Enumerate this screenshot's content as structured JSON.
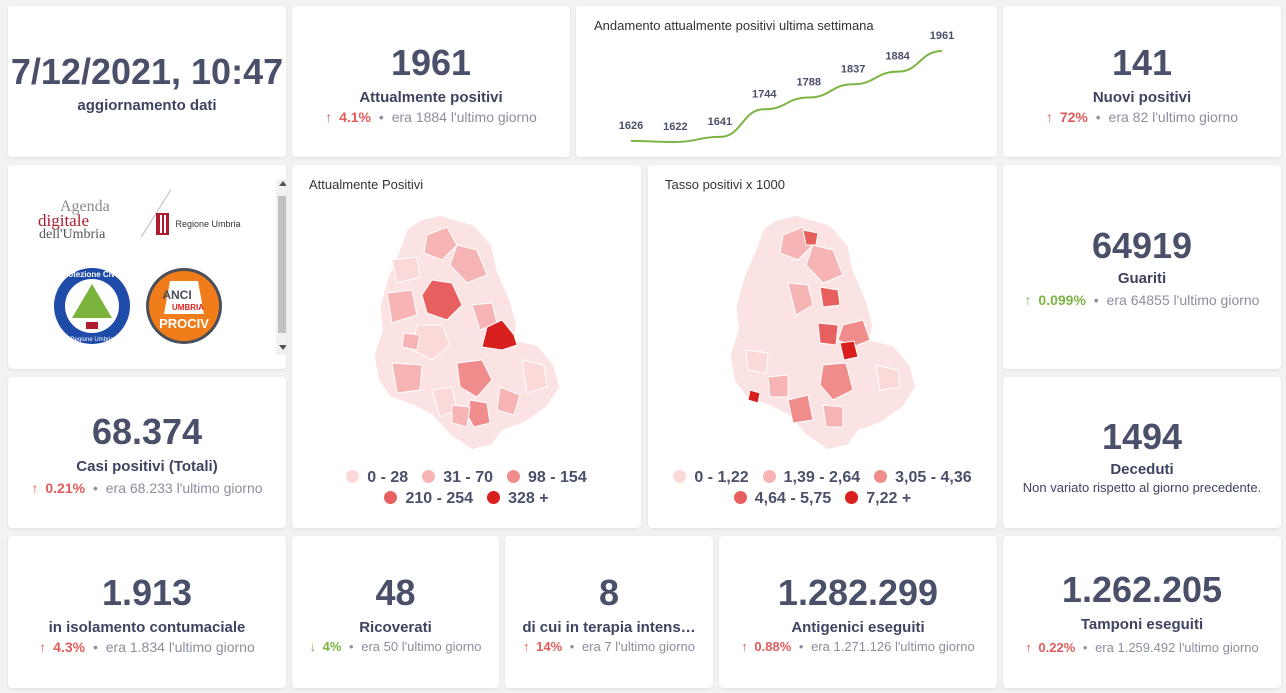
{
  "update": {
    "datetime": "7/12/2021, 10:47",
    "label": "aggiornamento dati"
  },
  "attuali": {
    "value": "1961",
    "label": "Attualmente positivi",
    "pct": "4.1%",
    "prev": "era 1884",
    "suffix": "l'ultimo giorno",
    "direction": "up"
  },
  "trend": {
    "title": "Andamento attualmente positivi ultima settimana",
    "values": [
      1626,
      1622,
      1641,
      1744,
      1788,
      1837,
      1884,
      1961
    ],
    "labels": [
      "1626",
      "1622",
      "1641",
      "1744",
      "1788",
      "1837",
      "1884",
      "1961"
    ],
    "line_color": "#7cb443"
  },
  "nuovi": {
    "value": "141",
    "label": "Nuovi positivi",
    "pct": "72%",
    "prev": "era 82",
    "suffix": "l'ultimo giorno",
    "direction": "up"
  },
  "logos": {
    "agenda_line1": "Agenda",
    "agenda_line2": "digitale",
    "agenda_line3": "dell'Umbria",
    "regione": "Regione Umbria",
    "pc_line1": "Protezione Civile",
    "pc_line2": "Regione Umbria",
    "anci_line1": "ANCI",
    "anci_line2": "UMBRIA",
    "anci_line3": "PROCIV"
  },
  "map1": {
    "title": "Attualmente Positivi",
    "legend": [
      {
        "label": "0 - 28",
        "color": "#fcd9d9"
      },
      {
        "label": "31 - 70",
        "color": "#f7b4b4"
      },
      {
        "label": "98 - 154",
        "color": "#f18c8c"
      },
      {
        "label": "210 - 254",
        "color": "#e85f5f"
      },
      {
        "label": "328 +",
        "color": "#d91e1e"
      }
    ]
  },
  "map2": {
    "title": "Tasso positivi x 1000",
    "legend": [
      {
        "label": "0 - 1,22",
        "color": "#fcd9d9"
      },
      {
        "label": "1,39 - 2,64",
        "color": "#f7b4b4"
      },
      {
        "label": "3,05 - 4,36",
        "color": "#f18c8c"
      },
      {
        "label": "4,64 - 5,75",
        "color": "#e85f5f"
      },
      {
        "label": "7,22 +",
        "color": "#d91e1e"
      }
    ]
  },
  "guariti": {
    "value": "64919",
    "label": "Guariti",
    "pct": "0.099%",
    "prev": "era 64855",
    "suffix": "l'ultimo giorno",
    "direction": "up"
  },
  "casi": {
    "value": "68.374",
    "label": "Casi positivi (Totali)",
    "pct": "0.21%",
    "prev": "era 68.233",
    "suffix": "l'ultimo giorno",
    "direction": "up"
  },
  "deceduti": {
    "value": "1494",
    "label": "Deceduti",
    "note": "Non variato rispetto al giorno precedente."
  },
  "isolamento": {
    "value": "1.913",
    "label": "in isolamento contumaciale",
    "pct": "4.3%",
    "prev": "era 1.834",
    "suffix": "l'ultimo giorno",
    "direction": "up"
  },
  "ricoverati": {
    "value": "48",
    "label": "Ricoverati",
    "pct": "4%",
    "prev": "era 50",
    "suffix": "l'ultimo giorno",
    "direction": "down"
  },
  "terapia": {
    "value": "8",
    "label": "di cui in terapia intens…",
    "pct": "14%",
    "prev": "era 7",
    "suffix": "l'ultimo giorno",
    "direction": "up"
  },
  "antigenici": {
    "value": "1.282.299",
    "label": "Antigenici eseguiti",
    "pct": "0.88%",
    "prev": "era 1.271.126",
    "suffix": "l'ultimo giorno",
    "direction": "up"
  },
  "tamponi": {
    "value": "1.262.205",
    "label": "Tamponi eseguiti",
    "pct": "0.22%",
    "prev": "era 1.259.492",
    "suffix": "l'ultimo giorno",
    "direction": "up"
  },
  "icons": {
    "up": "↑",
    "down": "↓",
    "dot": "•"
  }
}
